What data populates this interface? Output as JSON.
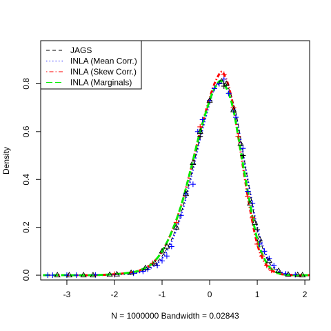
{
  "chart_data": {
    "type": "line",
    "title": "",
    "xlabel": "N = 1000000   Bandwidth = 0.02843",
    "ylabel": "Density",
    "xlim": [
      -3.55,
      2.1
    ],
    "ylim": [
      -0.02,
      0.98
    ],
    "xticks": [
      -3,
      -2,
      -1,
      0,
      1,
      2
    ],
    "yticks": [
      0.0,
      0.2,
      0.4,
      0.6,
      0.8
    ],
    "xtick_labels": [
      "-3",
      "-2",
      "-1",
      "0",
      "1",
      "2"
    ],
    "ytick_labels": [
      "0.0",
      "0.2",
      "0.4",
      "0.6",
      "0.8"
    ],
    "grid": false,
    "legend_position": "top-left",
    "series": [
      {
        "name": "JAGS",
        "color": "#000000",
        "dash": "dashed",
        "x": [
          -3.5,
          -3.0,
          -2.5,
          -2.0,
          -1.6,
          -1.4,
          -1.2,
          -1.0,
          -0.8,
          -0.6,
          -0.4,
          -0.2,
          0.0,
          0.1,
          0.2,
          0.3,
          0.4,
          0.5,
          0.6,
          0.8,
          1.0,
          1.2,
          1.4,
          1.6,
          1.8,
          2.1
        ],
        "y": [
          0.0,
          0.0,
          0.0,
          0.002,
          0.01,
          0.02,
          0.04,
          0.08,
          0.15,
          0.26,
          0.41,
          0.58,
          0.73,
          0.78,
          0.81,
          0.81,
          0.78,
          0.72,
          0.63,
          0.4,
          0.19,
          0.07,
          0.02,
          0.005,
          0.001,
          0.0
        ]
      },
      {
        "name": "INLA (Mean Corr.)",
        "color": "#0000ff",
        "dash": "dotted",
        "x": [
          -3.5,
          -3.0,
          -2.5,
          -2.0,
          -1.6,
          -1.4,
          -1.2,
          -1.0,
          -0.8,
          -0.6,
          -0.4,
          -0.2,
          0.0,
          0.1,
          0.2,
          0.3,
          0.4,
          0.5,
          0.6,
          0.8,
          1.0,
          1.2,
          1.4,
          1.6,
          1.8,
          2.1
        ],
        "y": [
          0.0,
          0.0,
          0.0,
          0.002,
          0.008,
          0.016,
          0.035,
          0.07,
          0.14,
          0.25,
          0.4,
          0.57,
          0.72,
          0.78,
          0.8,
          0.8,
          0.77,
          0.71,
          0.62,
          0.4,
          0.2,
          0.08,
          0.025,
          0.006,
          0.001,
          0.0
        ]
      },
      {
        "name": "INLA (Skew Corr.)",
        "color": "#ff0000",
        "dash": "dotdash",
        "x": [
          -3.5,
          -3.0,
          -2.5,
          -2.0,
          -1.6,
          -1.4,
          -1.2,
          -1.0,
          -0.8,
          -0.6,
          -0.4,
          -0.2,
          0.0,
          0.1,
          0.2,
          0.25,
          0.3,
          0.4,
          0.5,
          0.6,
          0.8,
          1.0,
          1.2,
          1.4,
          1.6,
          1.8,
          2.1
        ],
        "y": [
          0.0,
          0.0,
          0.0,
          0.004,
          0.013,
          0.026,
          0.05,
          0.1,
          0.18,
          0.29,
          0.44,
          0.6,
          0.74,
          0.8,
          0.84,
          0.85,
          0.84,
          0.79,
          0.7,
          0.58,
          0.33,
          0.13,
          0.04,
          0.01,
          0.002,
          0.0,
          0.0
        ]
      },
      {
        "name": "INLA (Marginals)",
        "color": "#00ee00",
        "dash": "longdash",
        "x": [
          -3.5,
          -3.0,
          -2.5,
          -2.0,
          -1.6,
          -1.4,
          -1.2,
          -1.0,
          -0.8,
          -0.6,
          -0.4,
          -0.2,
          0.0,
          0.1,
          0.2,
          0.25,
          0.3,
          0.4,
          0.5,
          0.6,
          0.8,
          1.0,
          1.2,
          1.4,
          1.6,
          1.8,
          2.1
        ],
        "y": [
          0.0,
          0.0,
          0.0,
          0.004,
          0.013,
          0.026,
          0.05,
          0.1,
          0.18,
          0.29,
          0.44,
          0.6,
          0.73,
          0.78,
          0.81,
          0.81,
          0.8,
          0.76,
          0.69,
          0.58,
          0.35,
          0.15,
          0.05,
          0.012,
          0.002,
          0.0,
          0.0
        ]
      },
      {
        "name": "",
        "marker": "plus",
        "color": "#0000ff",
        "x": [
          -3.4,
          -3.3,
          -3.0,
          -2.8,
          -2.4,
          -2.0,
          -1.6,
          -1.4,
          -1.3,
          -1.1,
          -1.0,
          -0.9,
          -0.8,
          -0.6,
          -0.5,
          -0.35,
          -0.25,
          -0.15,
          0.0,
          0.1,
          0.2,
          0.3,
          0.4,
          0.5,
          0.55,
          0.7,
          0.8,
          0.9,
          1.0,
          1.05,
          1.15,
          1.25,
          1.35,
          1.6,
          1.8
        ],
        "y": [
          0.0,
          0.0,
          0.0,
          0.0,
          0.001,
          0.002,
          0.008,
          0.016,
          0.025,
          0.04,
          0.06,
          0.08,
          0.12,
          0.25,
          0.34,
          0.38,
          0.6,
          0.65,
          0.73,
          0.78,
          0.8,
          0.82,
          0.76,
          0.69,
          0.66,
          0.53,
          0.35,
          0.3,
          0.19,
          0.13,
          0.1,
          0.07,
          0.04,
          0.006,
          0.002
        ]
      },
      {
        "name": "",
        "marker": "plus",
        "color": "#ff0000",
        "x": [
          -2.0,
          -1.2,
          -0.7,
          -0.2,
          0.3,
          0.5,
          0.6,
          0.8,
          0.9,
          1.0,
          1.1,
          1.2,
          1.3
        ],
        "y": [
          0.004,
          0.05,
          0.22,
          0.62,
          0.84,
          0.7,
          0.58,
          0.33,
          0.24,
          0.13,
          0.08,
          0.04,
          0.02
        ]
      },
      {
        "name": "",
        "marker": "plus",
        "color": "#000000",
        "x": [
          -0.2,
          0.3,
          0.7,
          1.0
        ],
        "y": [
          0.58,
          0.79,
          0.5,
          0.19
        ]
      },
      {
        "name": "",
        "marker": "triangle",
        "color": "#000000",
        "x": [
          -3.2,
          -2.95,
          -2.65,
          -2.45,
          -2.1,
          -1.95,
          -1.65,
          -1.35,
          -1.15,
          -1.0,
          -0.9,
          -0.7,
          -0.5,
          -0.35,
          -0.2,
          0.0,
          0.25,
          0.35,
          0.5,
          0.65,
          0.85,
          0.95,
          1.05,
          1.25,
          1.45,
          1.65,
          1.85,
          1.95
        ],
        "y": [
          0.0,
          0.0,
          0.0,
          0.0,
          0.002,
          0.004,
          0.01,
          0.03,
          0.05,
          0.1,
          0.12,
          0.2,
          0.34,
          0.47,
          0.6,
          0.73,
          0.81,
          0.8,
          0.69,
          0.55,
          0.3,
          0.22,
          0.15,
          0.06,
          0.018,
          0.003,
          0.001,
          0.0
        ]
      }
    ]
  }
}
